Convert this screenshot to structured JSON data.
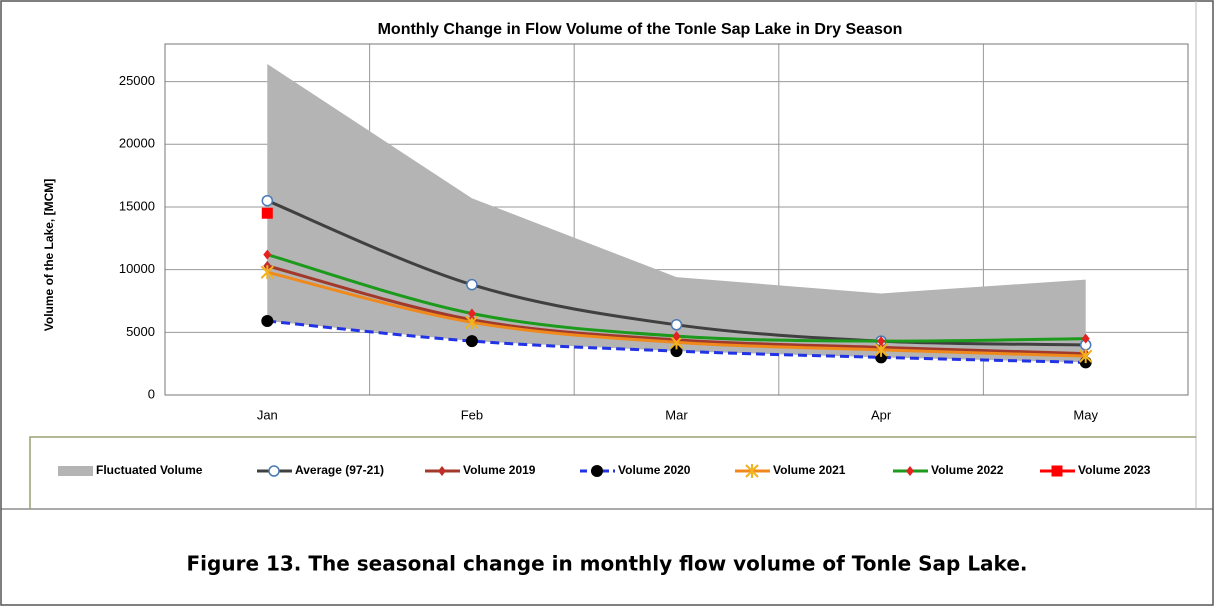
{
  "chart_data": {
    "type": "line",
    "title": "Monthly Change in Flow Volume of the Tonle Sap Lake in Dry Season",
    "y_label": "Volume of the Lake, [MCM]",
    "categories": [
      "Jan",
      "Feb",
      "Mar",
      "Apr",
      "May"
    ],
    "ylim": [
      0,
      28000
    ],
    "yticks": [
      0,
      5000,
      10000,
      15000,
      20000,
      25000
    ],
    "grid": true,
    "legend": "bottom",
    "series": [
      {
        "name": "Fluctuated Volume",
        "type": "band",
        "color": "#b4b4b4",
        "values": [
          26400,
          15700,
          9400,
          8100,
          9200
        ],
        "lower": [
          5900,
          4300,
          3500,
          3000,
          2600
        ]
      },
      {
        "name": "Average (97-21)",
        "color": "#404040",
        "marker": "circle-open",
        "marker_color": "#4a7ab5",
        "values": [
          15500,
          8800,
          5600,
          4300,
          4000
        ]
      },
      {
        "name": "Volume 2019",
        "color": "#a23a2c",
        "marker": "diamond",
        "marker_color": "#c0302a",
        "values": [
          10300,
          6000,
          4400,
          3800,
          3300
        ]
      },
      {
        "name": "Volume 2020",
        "color": "#2233e6",
        "dashed": true,
        "marker": "circle",
        "marker_color": "#000000",
        "values": [
          5900,
          4300,
          3500,
          3000,
          2600
        ]
      },
      {
        "name": "Volume 2021",
        "color": "#f0891c",
        "marker": "star",
        "marker_color": "#f2b21e",
        "values": [
          9800,
          5800,
          4200,
          3600,
          3100
        ]
      },
      {
        "name": "Volume 2022",
        "color": "#1b9a1b",
        "marker": "diamond",
        "marker_color": "#e52222",
        "values": [
          11200,
          6500,
          4700,
          4300,
          4500
        ]
      },
      {
        "name": "Volume 2023",
        "color": "#ff0000",
        "marker": "square",
        "marker_color": "#ff0000",
        "values": [
          14500,
          null,
          null,
          null,
          null
        ]
      }
    ]
  },
  "caption": "Figure 13. The seasonal change in monthly flow volume of Tonle Sap Lake."
}
